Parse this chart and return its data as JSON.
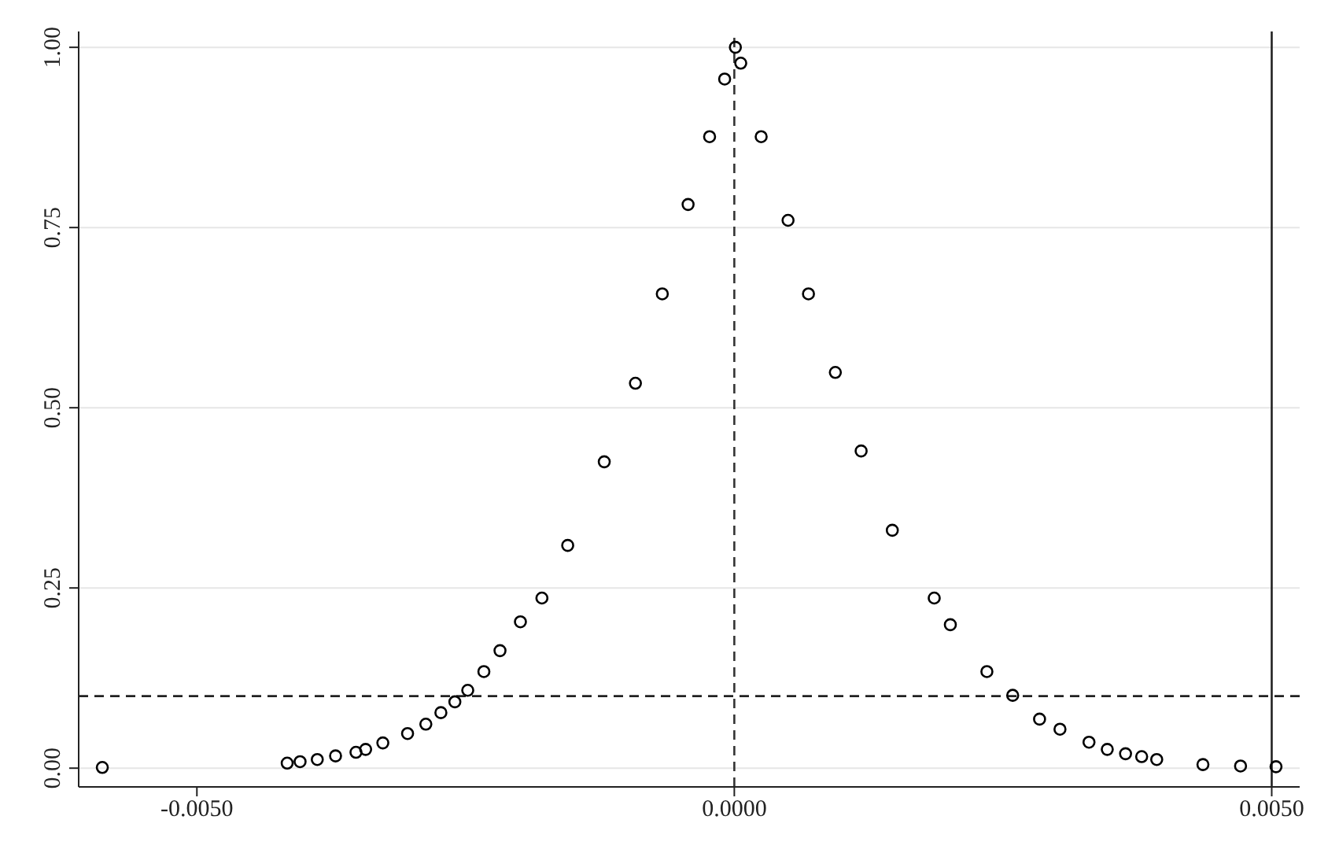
{
  "chart_data": {
    "type": "scatter",
    "marker": "circle",
    "grid": "y",
    "x": [
      -0.00588,
      -0.00416,
      -0.00404,
      -0.00388,
      -0.00371,
      -0.00352,
      -0.00343,
      -0.00327,
      -0.00304,
      -0.00287,
      -0.00273,
      -0.0026,
      -0.00248,
      -0.00233,
      -0.00218,
      -0.00199,
      -0.00179,
      -0.00155,
      -0.00121,
      -0.00092,
      -0.00067,
      -0.00043,
      -0.00023,
      -9e-05,
      1e-05,
      6e-05,
      0.00025,
      0.0005,
      0.00069,
      0.00094,
      0.00118,
      0.00147,
      0.00186,
      0.00201,
      0.00235,
      0.00259,
      0.00284,
      0.00303,
      0.0033,
      0.00347,
      0.00364,
      0.00379,
      0.00393,
      0.00436,
      0.00471,
      0.00504
    ],
    "series": [
      {
        "color": "#000000",
        "values": [
          0.001,
          0.007,
          0.009,
          0.012,
          0.017,
          0.022,
          0.026,
          0.035,
          0.048,
          0.061,
          0.077,
          0.092,
          0.108,
          0.134,
          0.163,
          0.203,
          0.236,
          0.309,
          0.425,
          0.534,
          0.658,
          0.782,
          0.876,
          0.956,
          1.0,
          0.978,
          0.876,
          0.76,
          0.658,
          0.549,
          0.44,
          0.33,
          0.236,
          0.199,
          0.134,
          0.101,
          0.068,
          0.054,
          0.036,
          0.026,
          0.02,
          0.016,
          0.012,
          0.005,
          0.003,
          0.002
        ]
      }
    ],
    "xlim": [
      -0.0061,
      0.00526
    ],
    "xticks": [
      {
        "value": -0.005,
        "label": "-0.0050"
      },
      {
        "value": 0,
        "label": "0.0000"
      },
      {
        "value": 0.005,
        "label": "0.0050"
      }
    ],
    "ylim": [
      -0.026,
      1.022
    ],
    "yticks": [
      {
        "value": 0,
        "label": "0.00"
      },
      {
        "value": 0.25,
        "label": "0.25"
      },
      {
        "value": 0.5,
        "label": "0.50"
      },
      {
        "value": 0.75,
        "label": "0.75"
      },
      {
        "value": 1,
        "label": "1.00"
      }
    ],
    "ref_lines": [
      {
        "axis": "x",
        "value": 0,
        "line_style": "dashed",
        "color": "#333333"
      },
      {
        "axis": "y",
        "value": 0.1,
        "line_style": "dashed",
        "color": "#222222"
      },
      {
        "axis": "x",
        "value": 0.005,
        "line_style": "solid",
        "color": "#222222"
      }
    ]
  }
}
